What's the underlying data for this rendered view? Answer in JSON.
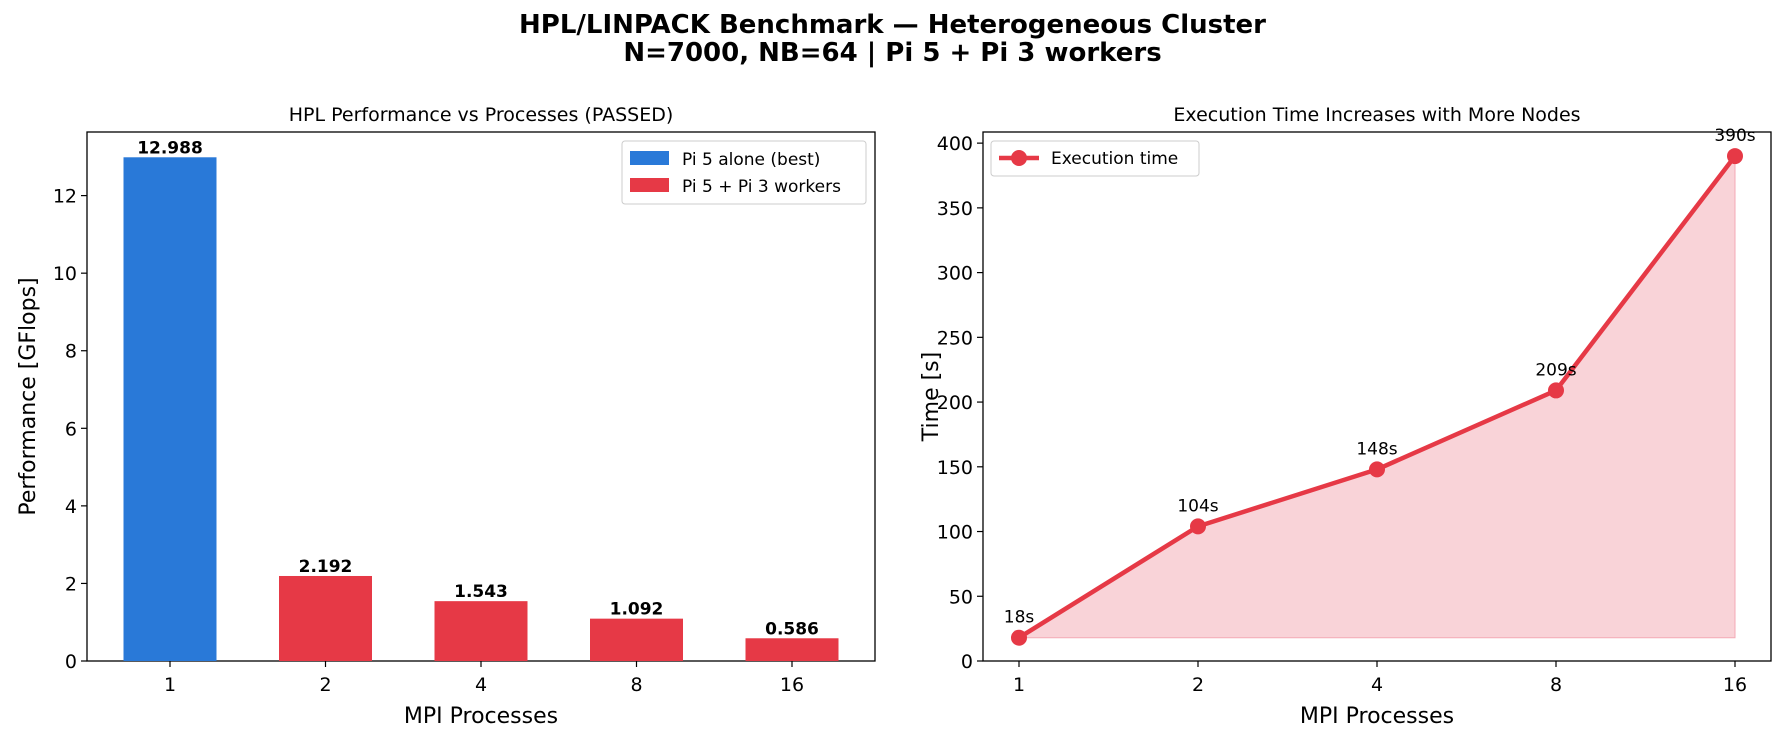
{
  "figure": {
    "title": "HPL/LINPACK Benchmark — Heterogeneous Cluster",
    "subtitle": "N=7000, NB=64 | Pi 5 + Pi 3 workers"
  },
  "chart_data": [
    {
      "type": "bar",
      "title": "HPL Performance vs Processes (PASSED)",
      "xlabel": "MPI Processes",
      "ylabel": "Performance [GFlops]",
      "categories": [
        "1",
        "2",
        "4",
        "8",
        "16"
      ],
      "values": [
        12.988,
        2.192,
        1.543,
        1.092,
        0.586
      ],
      "value_labels": [
        "12.988",
        "2.192",
        "1.543",
        "1.092",
        "0.586"
      ],
      "bar_series": [
        0,
        1,
        1,
        1,
        1
      ],
      "ylim": [
        0,
        13.64
      ],
      "yticks": [
        0,
        2,
        4,
        6,
        8,
        10,
        12
      ],
      "legend": {
        "placement": "top-right",
        "entries": [
          {
            "name": "Pi 5 alone (best)",
            "color": "#2979d8"
          },
          {
            "name": "Pi 5 + Pi 3 workers",
            "color": "#e63946"
          }
        ]
      },
      "grid": false
    },
    {
      "type": "line",
      "title": "Execution Time Increases with More Nodes",
      "xlabel": "MPI Processes",
      "ylabel": "Time [s]",
      "categories": [
        "1",
        "2",
        "4",
        "8",
        "16"
      ],
      "series": [
        {
          "name": "Execution time",
          "values": [
            18,
            104,
            148,
            209,
            390
          ],
          "color": "#e63946",
          "fill": "#f9d3d8"
        }
      ],
      "value_labels": [
        "18s",
        "104s",
        "148s",
        "209s",
        "390s"
      ],
      "ylim": [
        0,
        408.6
      ],
      "yticks": [
        0,
        50,
        100,
        150,
        200,
        250,
        300,
        350,
        400
      ],
      "legend": {
        "placement": "top-left"
      },
      "grid": false
    }
  ]
}
